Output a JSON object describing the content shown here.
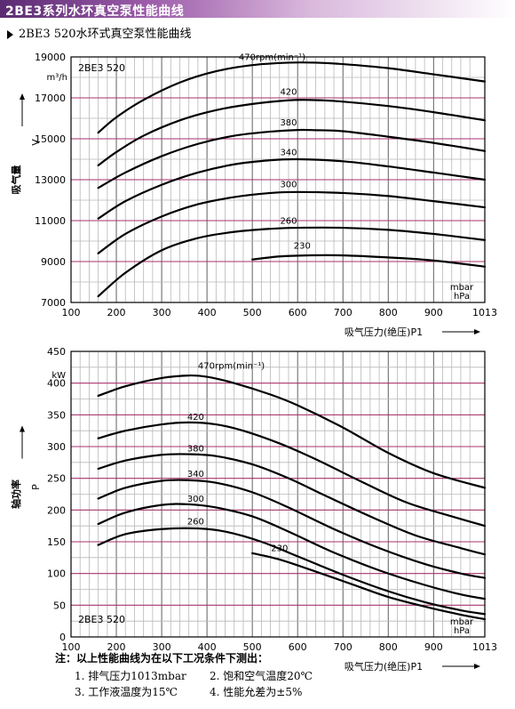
{
  "banner": {
    "title": "2BE3系列水环真空泵性能曲线"
  },
  "subtitle": "2BE3 520水环式真空泵性能曲线",
  "chart_data": [
    {
      "type": "line",
      "model_label": "2BE3 520",
      "xlabel": "吸气压力(绝压)P1",
      "x_unit": [
        "mbar",
        "hPa"
      ],
      "ylabel": "吸气量",
      "y_symbol": "V",
      "y_unit": "m³/h",
      "xlim": [
        100,
        1013
      ],
      "ylim": [
        7000,
        19000
      ],
      "x_ticks": [
        100,
        200,
        300,
        400,
        500,
        600,
        700,
        800,
        900,
        1013
      ],
      "y_ticks": [
        7000,
        9000,
        11000,
        13000,
        15000,
        17000,
        19000
      ],
      "grid": true,
      "series": [
        {
          "name": "470rpm(min⁻¹)",
          "x": [
            160,
            200,
            260,
            340,
            420,
            500,
            580,
            640,
            700,
            800,
            900,
            1013
          ],
          "y": [
            15300,
            16050,
            16900,
            17750,
            18300,
            18600,
            18720,
            18720,
            18650,
            18450,
            18150,
            17800
          ]
        },
        {
          "name": "420",
          "x": [
            160,
            200,
            260,
            340,
            420,
            500,
            580,
            620,
            680,
            800,
            900,
            1013
          ],
          "y": [
            13700,
            14350,
            15150,
            15900,
            16400,
            16700,
            16880,
            16900,
            16850,
            16600,
            16300,
            15900
          ]
        },
        {
          "name": "380",
          "x": [
            160,
            220,
            300,
            380,
            460,
            540,
            600,
            640,
            700,
            800,
            900,
            1013
          ],
          "y": [
            12600,
            13350,
            14150,
            14750,
            15150,
            15350,
            15430,
            15420,
            15370,
            15100,
            14800,
            14400
          ]
        },
        {
          "name": "340",
          "x": [
            160,
            220,
            300,
            380,
            460,
            540,
            600,
            700,
            800,
            900,
            1013
          ],
          "y": [
            11100,
            11950,
            12750,
            13350,
            13750,
            13950,
            14000,
            13900,
            13650,
            13350,
            13000
          ]
        },
        {
          "name": "300",
          "x": [
            160,
            220,
            300,
            380,
            460,
            540,
            600,
            700,
            800,
            900,
            1013
          ],
          "y": [
            9400,
            10350,
            11200,
            11800,
            12150,
            12350,
            12400,
            12350,
            12200,
            11950,
            11650
          ]
        },
        {
          "name": "260",
          "x": [
            160,
            220,
            300,
            380,
            460,
            540,
            600,
            700,
            800,
            900,
            1013
          ],
          "y": [
            7300,
            8450,
            9550,
            10150,
            10450,
            10600,
            10650,
            10650,
            10550,
            10350,
            10050
          ]
        },
        {
          "name": "230",
          "x": [
            500,
            560,
            620,
            700,
            800,
            900,
            1013
          ],
          "y": [
            9100,
            9250,
            9300,
            9300,
            9200,
            9050,
            8750
          ]
        }
      ]
    },
    {
      "type": "line",
      "model_label": "2BE3 520",
      "xlabel": "吸气压力(绝压)P1",
      "x_unit": [
        "mbar",
        "hPa"
      ],
      "ylabel": "轴功率",
      "y_symbol": "P",
      "y_unit": "kW",
      "xlim": [
        100,
        1013
      ],
      "ylim": [
        0,
        450
      ],
      "x_ticks": [
        100,
        200,
        300,
        400,
        500,
        600,
        700,
        800,
        900,
        1013
      ],
      "y_ticks": [
        0,
        50,
        100,
        150,
        200,
        250,
        300,
        350,
        400,
        450
      ],
      "grid": true,
      "series": [
        {
          "name": "470rpm(min⁻¹)",
          "x": [
            160,
            220,
            300,
            360,
            400,
            460,
            540,
            600,
            700,
            800,
            900,
            1013
          ],
          "y": [
            380,
            395,
            408,
            412,
            410,
            400,
            382,
            365,
            330,
            290,
            258,
            235
          ]
        },
        {
          "name": "420",
          "x": [
            160,
            220,
            300,
            360,
            420,
            480,
            560,
            640,
            740,
            840,
            940,
            1013
          ],
          "y": [
            313,
            325,
            335,
            338,
            335,
            325,
            305,
            280,
            245,
            212,
            190,
            175
          ]
        },
        {
          "name": "380",
          "x": [
            160,
            220,
            300,
            360,
            420,
            500,
            580,
            660,
            760,
            860,
            960,
            1013
          ],
          "y": [
            265,
            278,
            287,
            288,
            285,
            272,
            250,
            223,
            190,
            160,
            140,
            130
          ]
        },
        {
          "name": "340",
          "x": [
            160,
            220,
            300,
            360,
            420,
            500,
            580,
            680,
            780,
            880,
            960,
            1013
          ],
          "y": [
            218,
            235,
            246,
            247,
            243,
            228,
            204,
            170,
            140,
            115,
            100,
            93
          ]
        },
        {
          "name": "300",
          "x": [
            160,
            220,
            300,
            360,
            420,
            500,
            580,
            680,
            780,
            880,
            960,
            1013
          ],
          "y": [
            178,
            196,
            208,
            209,
            204,
            190,
            166,
            133,
            105,
            82,
            67,
            60
          ]
        },
        {
          "name": "260",
          "x": [
            160,
            220,
            300,
            380,
            440,
            520,
            600,
            700,
            800,
            880,
            960,
            1013
          ],
          "y": [
            145,
            162,
            170,
            171,
            166,
            150,
            127,
            98,
            72,
            55,
            42,
            36
          ]
        },
        {
          "name": "230",
          "x": [
            500,
            560,
            640,
            720,
            800,
            880,
            960,
            1013
          ],
          "y": [
            132,
            122,
            103,
            83,
            63,
            48,
            35,
            28
          ]
        }
      ]
    }
  ],
  "notes": {
    "header": "注：以上性能曲线为在以下工况条件下测出：",
    "items": [
      "1. 排气压力1013mbar",
      "2. 饱和空气温度20℃",
      "3. 工作液温度为15℃",
      "4. 性能允差为±5%"
    ]
  }
}
